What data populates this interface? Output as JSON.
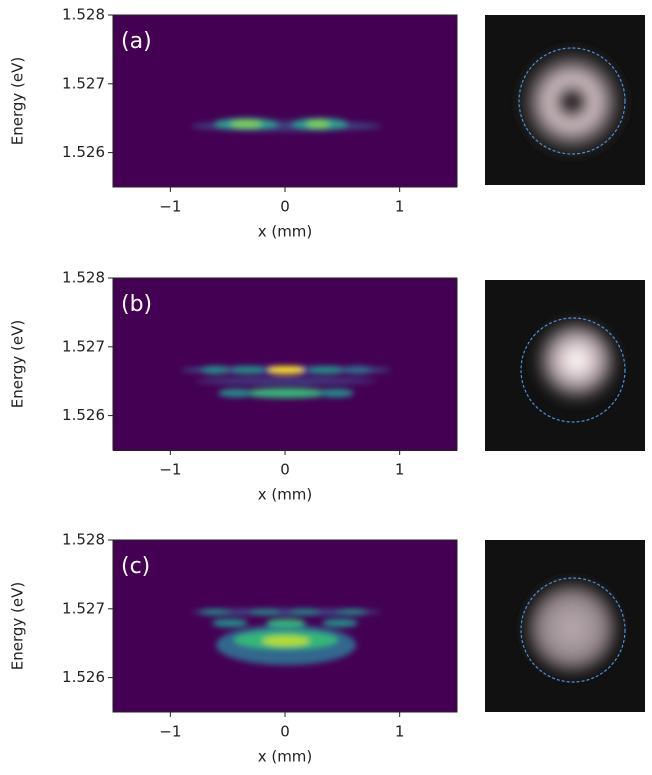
{
  "chart_data": [
    {
      "type": "heatmap",
      "label": "(a)",
      "xlabel": "x (mm)",
      "ylabel": "Energy (eV)",
      "xlim": [
        -1.5,
        1.5
      ],
      "ylim": [
        1.5255,
        1.528
      ],
      "xticks": [
        {
          "value": -1,
          "label": "−1"
        },
        0,
        1
      ],
      "yticks": [
        1.526,
        1.527,
        1.528
      ]
    },
    {
      "type": "heatmap",
      "label": "(b)",
      "xlabel": "x (mm)",
      "ylabel": "Energy (eV)",
      "xlim": [
        -1.5,
        1.5
      ],
      "ylim": [
        1.5255,
        1.528
      ],
      "xticks": [
        {
          "value": -1,
          "label": "−1"
        },
        0,
        1
      ],
      "yticks": [
        1.526,
        1.527,
        1.528
      ]
    },
    {
      "type": "heatmap",
      "label": "(c)",
      "xlabel": "x (mm)",
      "ylabel": "Energy (eV)",
      "xlim": [
        -1.5,
        1.5
      ],
      "ylim": [
        1.5255,
        1.528
      ],
      "xticks": [
        {
          "value": -1,
          "label": "−1"
        },
        0,
        1
      ],
      "yticks": [
        1.526,
        1.527,
        1.528
      ]
    }
  ]
}
